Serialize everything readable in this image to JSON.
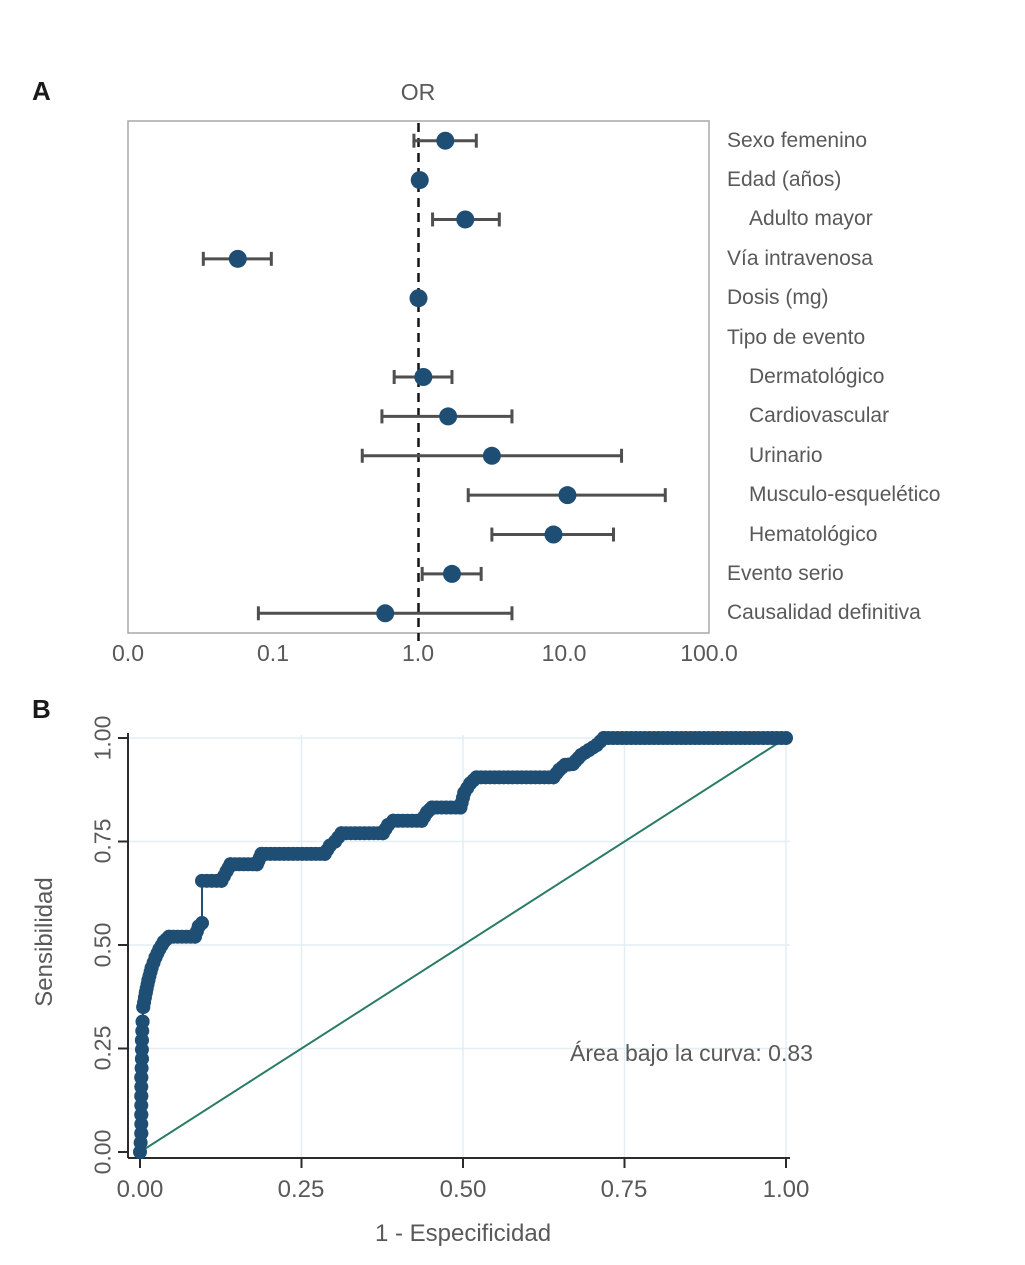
{
  "colors": {
    "marker_navy": "#1f4e74",
    "whisker_gray": "#4f4f4f",
    "reference_black": "#141414",
    "box_border": "#a8a8a8",
    "grid_blue": "#e2eef3",
    "diagonal_green": "#2a7c66",
    "axis_dark": "#2b2b2b",
    "text_gray": "#595959"
  },
  "chart_data": [
    {
      "type": "scatter",
      "subtype": "forest-plot",
      "panel": "A",
      "title": "OR",
      "xscale": "log",
      "xlim": [
        0.01,
        100
      ],
      "reference_line": 1.0,
      "x_ticks": [
        0.01,
        0.1,
        1.0,
        10.0,
        100.0
      ],
      "x_tick_labels": [
        "0.0",
        "0.1",
        "1.0",
        "10.0",
        "100.0"
      ],
      "rows": [
        {
          "label": "Sexo femenino",
          "indent": 0,
          "or": 1.53,
          "ci_low": 0.93,
          "ci_high": 2.5
        },
        {
          "label": "Edad (años)",
          "indent": 0,
          "or": 1.02,
          "ci_low": 0.97,
          "ci_high": 1.07
        },
        {
          "label": "Adulto mayor",
          "indent": 1,
          "or": 2.1,
          "ci_low": 1.25,
          "ci_high": 3.6
        },
        {
          "label": "Vía intravenosa",
          "indent": 0,
          "or": 0.057,
          "ci_low": 0.033,
          "ci_high": 0.097
        },
        {
          "label": "Dosis (mg)",
          "indent": 0,
          "or": 1.0,
          "ci_low": 0.98,
          "ci_high": 1.03
        },
        {
          "label": "Tipo de evento",
          "indent": 0,
          "or": null,
          "ci_low": null,
          "ci_high": null
        },
        {
          "label": "Dermatológico",
          "indent": 1,
          "or": 1.08,
          "ci_low": 0.68,
          "ci_high": 1.7
        },
        {
          "label": "Cardiovascular",
          "indent": 1,
          "or": 1.6,
          "ci_low": 0.56,
          "ci_high": 4.4
        },
        {
          "label": "Urinario",
          "indent": 1,
          "or": 3.2,
          "ci_low": 0.41,
          "ci_high": 25
        },
        {
          "label": "Musculo-esquelético",
          "indent": 1,
          "or": 10.6,
          "ci_low": 2.2,
          "ci_high": 50
        },
        {
          "label": "Hematológico",
          "indent": 1,
          "or": 8.5,
          "ci_low": 3.2,
          "ci_high": 22
        },
        {
          "label": "Evento serio",
          "indent": 0,
          "or": 1.7,
          "ci_low": 1.06,
          "ci_high": 2.7
        },
        {
          "label": "Causalidad definitiva",
          "indent": 0,
          "or": 0.59,
          "ci_low": 0.079,
          "ci_high": 4.4
        }
      ]
    },
    {
      "type": "line",
      "subtype": "roc-curve",
      "panel": "B",
      "xlabel": "1 - Especificidad",
      "ylabel": "Sensibilidad",
      "xlim": [
        0,
        1
      ],
      "ylim": [
        0,
        1
      ],
      "x_ticks": [
        0,
        0.25,
        0.5,
        0.75,
        1
      ],
      "x_tick_labels": [
        "0.00",
        "0.25",
        "0.50",
        "0.75",
        "1.00"
      ],
      "y_ticks": [
        0,
        0.25,
        0.5,
        0.75,
        1
      ],
      "y_tick_labels": [
        "0.00",
        "0.25",
        "0.50",
        "0.75",
        "1.00"
      ],
      "grid": true,
      "diagonal_reference": true,
      "annotation": "Área bajo la curva: 0.83",
      "auc": 0.83,
      "points": [
        [
          0.0,
          0.0
        ],
        [
          0.002,
          0.045
        ],
        [
          0.002,
          0.09
        ],
        [
          0.002,
          0.135
        ],
        [
          0.002,
          0.18
        ],
        [
          0.003,
          0.225
        ],
        [
          0.003,
          0.27
        ],
        [
          0.004,
          0.315
        ],
        [
          0.005,
          0.35
        ],
        [
          0.009,
          0.385
        ],
        [
          0.013,
          0.415
        ],
        [
          0.018,
          0.445
        ],
        [
          0.024,
          0.47
        ],
        [
          0.03,
          0.49
        ],
        [
          0.037,
          0.508
        ],
        [
          0.045,
          0.52
        ],
        [
          0.085,
          0.52
        ],
        [
          0.091,
          0.545
        ],
        [
          0.096,
          0.553
        ],
        [
          0.096,
          0.655
        ],
        [
          0.126,
          0.655
        ],
        [
          0.134,
          0.678
        ],
        [
          0.14,
          0.695
        ],
        [
          0.181,
          0.695
        ],
        [
          0.188,
          0.72
        ],
        [
          0.286,
          0.72
        ],
        [
          0.294,
          0.74
        ],
        [
          0.302,
          0.75
        ],
        [
          0.312,
          0.77
        ],
        [
          0.376,
          0.77
        ],
        [
          0.384,
          0.79
        ],
        [
          0.392,
          0.8
        ],
        [
          0.436,
          0.8
        ],
        [
          0.444,
          0.82
        ],
        [
          0.452,
          0.832
        ],
        [
          0.496,
          0.832
        ],
        [
          0.502,
          0.868
        ],
        [
          0.511,
          0.89
        ],
        [
          0.521,
          0.905
        ],
        [
          0.64,
          0.905
        ],
        [
          0.649,
          0.923
        ],
        [
          0.658,
          0.935
        ],
        [
          0.67,
          0.937
        ],
        [
          0.683,
          0.959
        ],
        [
          0.695,
          0.971
        ],
        [
          0.707,
          0.983
        ],
        [
          0.718,
          1.0
        ],
        [
          1.0,
          1.0
        ]
      ]
    }
  ]
}
